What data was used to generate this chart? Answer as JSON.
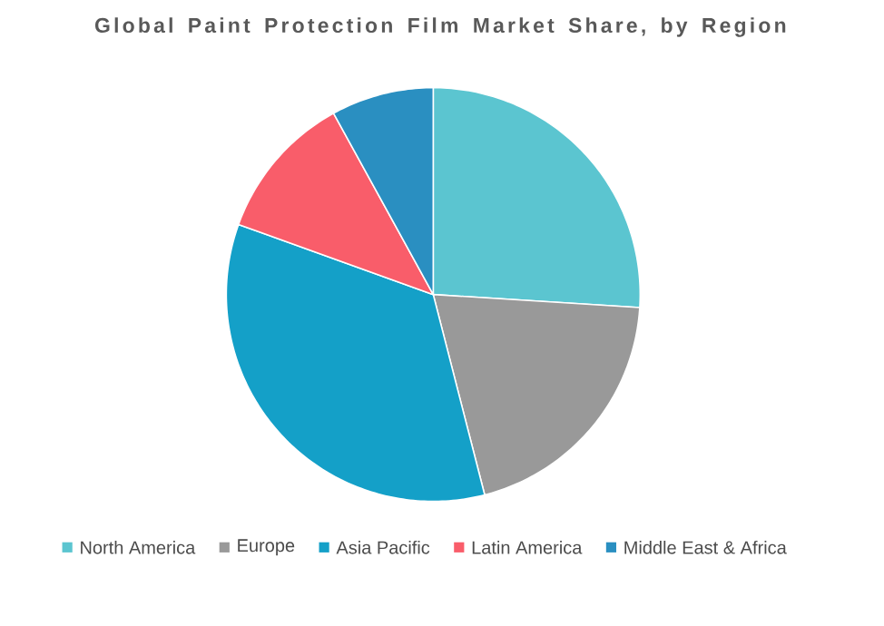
{
  "chart_data": {
    "type": "pie",
    "title": "Global Paint Protection Film Market Share, by Region",
    "categories": [
      "North America",
      "Europe",
      "Asia Pacific",
      "Latin America",
      "Middle East & Africa"
    ],
    "values": [
      26,
      20,
      34.5,
      11.5,
      8
    ],
    "colors": [
      "#5bc5d0",
      "#999999",
      "#14a0c8",
      "#f95d6a",
      "#2a8fc1"
    ],
    "legend": "bottom"
  }
}
